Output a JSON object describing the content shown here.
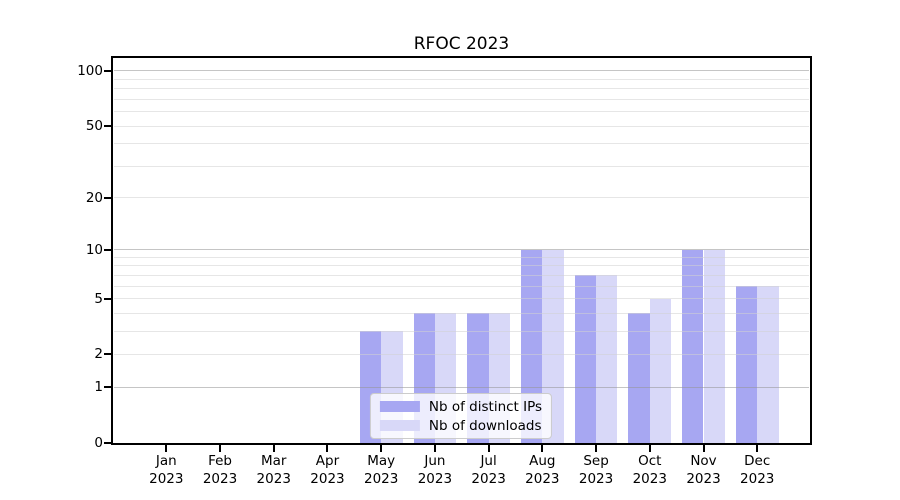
{
  "chart_data": {
    "type": "bar",
    "title": "RFOC 2023",
    "categories": [
      "Jan 2023",
      "Feb 2023",
      "Mar 2023",
      "Apr 2023",
      "May 2023",
      "Jun 2023",
      "Jul 2023",
      "Aug 2023",
      "Sep 2023",
      "Oct 2023",
      "Nov 2023",
      "Dec 2023"
    ],
    "series": [
      {
        "name": "Nb of distinct IPs",
        "color": "#a7a7f2",
        "values": [
          0,
          0,
          0,
          0,
          3,
          4,
          4,
          10,
          7,
          4,
          10,
          6
        ]
      },
      {
        "name": "Nb of downloads",
        "color": "#d8d8f8",
        "values": [
          0,
          0,
          0,
          0,
          3,
          4,
          4,
          10,
          7,
          5,
          10,
          6
        ]
      }
    ],
    "y_axis": {
      "scale": "log1p",
      "tick_values": [
        0,
        1,
        2,
        5,
        10,
        20,
        50,
        100
      ],
      "gridline_values": [
        1,
        2,
        3,
        4,
        5,
        6,
        7,
        8,
        9,
        10,
        20,
        30,
        40,
        50,
        60,
        70,
        80,
        90,
        100
      ],
      "major_gridline_values": [
        1,
        10,
        100
      ],
      "range": [
        0,
        118
      ]
    },
    "grid": "horizontal",
    "legend_position": "lower center"
  },
  "colors": {
    "background": "#ffffff",
    "spine": "#000000",
    "grid_minor": "rgba(210,210,210,0.55)",
    "grid_major": "rgba(150,150,150,0.55)",
    "legend_border": "#cccccc"
  }
}
